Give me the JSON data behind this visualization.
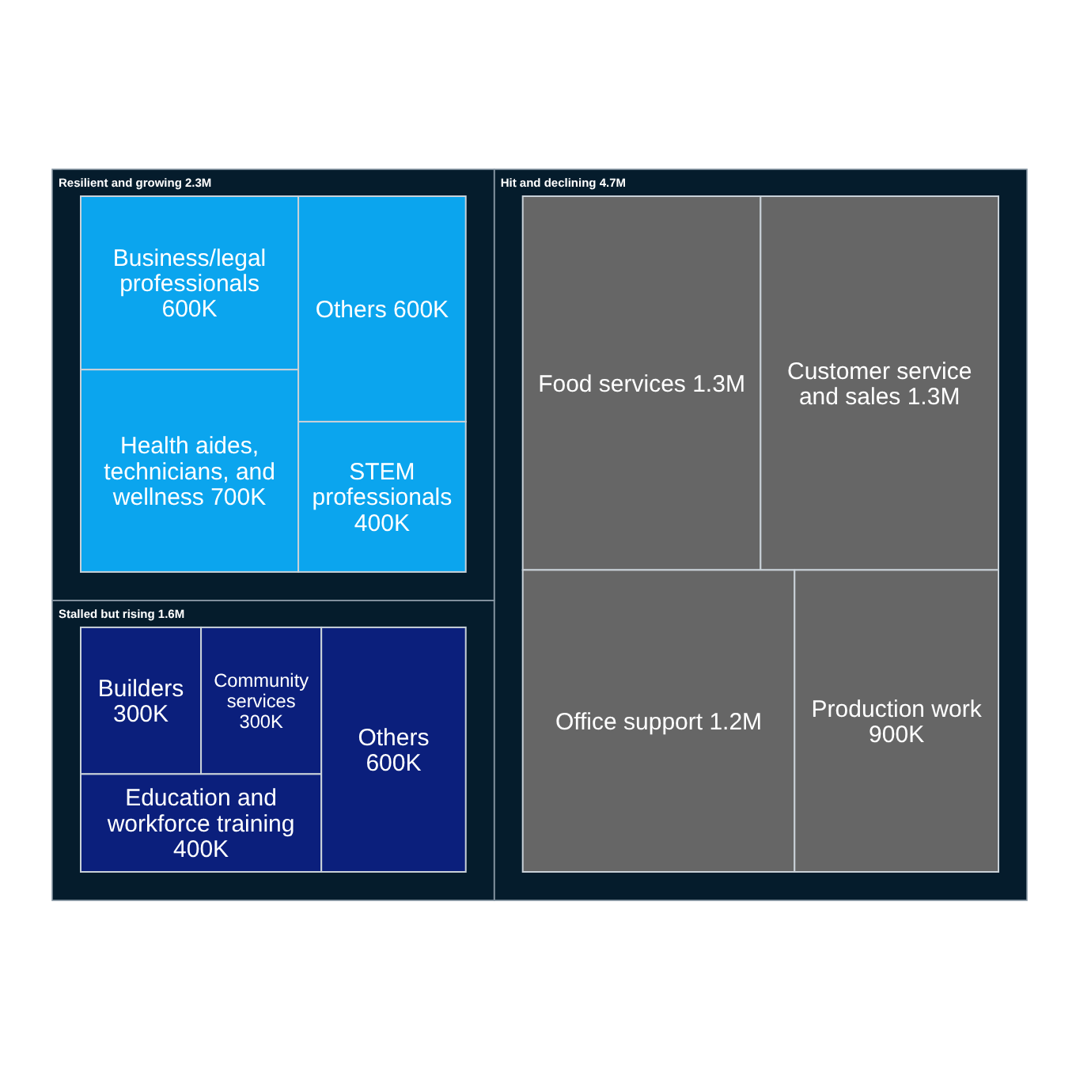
{
  "chart_data": {
    "type": "other",
    "categories": [
      "Business/legal professionals",
      "Health aides, technicians, and wellness",
      "Others",
      "STEM professionals",
      "Builders",
      "Community services",
      "Education and workforce training",
      "Others",
      "Food services",
      "Customer service and sales",
      "Office support",
      "Production work"
    ],
    "series": [
      {
        "name": "Resilient and growing",
        "color": "#0ba5ee",
        "values": [
          600000,
          700000,
          600000,
          400000,
          null,
          null,
          null,
          null,
          null,
          null,
          null,
          null
        ],
        "value_labels": [
          "600K",
          "700K",
          "600K",
          "400K",
          null,
          null,
          null,
          null,
          null,
          null,
          null,
          null
        ]
      },
      {
        "name": "Stalled but rising",
        "color": "#0b1f7c",
        "values": [
          null,
          null,
          null,
          null,
          300000,
          300000,
          400000,
          600000,
          null,
          null,
          null,
          null
        ],
        "value_labels": [
          null,
          null,
          null,
          null,
          "300K",
          "300K",
          "400K",
          "600K",
          null,
          null,
          null,
          null
        ]
      },
      {
        "name": "Hit and declining",
        "color": "#666666",
        "values": [
          null,
          null,
          null,
          null,
          null,
          null,
          null,
          null,
          1300000,
          1300000,
          1200000,
          900000
        ],
        "value_labels": [
          null,
          null,
          null,
          null,
          null,
          null,
          null,
          null,
          "1.3M",
          "1.3M",
          "1.2M",
          "900K"
        ]
      }
    ],
    "totals": [
      "2.3M",
      "1.6M",
      "4.7M"
    ]
  }
}
